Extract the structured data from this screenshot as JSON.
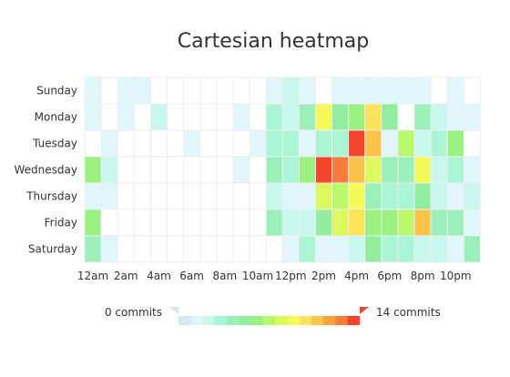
{
  "chart_data": {
    "type": "heatmap",
    "title": "Cartesian heatmap",
    "x_categories": [
      "12am",
      "1am",
      "2am",
      "3am",
      "4am",
      "5am",
      "6am",
      "7am",
      "8am",
      "9am",
      "10am",
      "11am",
      "12pm",
      "1pm",
      "2pm",
      "3pm",
      "4pm",
      "5pm",
      "6pm",
      "7pm",
      "8pm",
      "9pm",
      "10pm",
      "11pm"
    ],
    "x_tick_labels": [
      "12am",
      "2am",
      "4am",
      "6am",
      "8am",
      "10am",
      "12pm",
      "2pm",
      "4pm",
      "6pm",
      "8pm",
      "10pm"
    ],
    "y_categories": [
      "Sunday",
      "Monday",
      "Tuesday",
      "Wednesday",
      "Thursday",
      "Friday",
      "Saturday"
    ],
    "value_range": [
      0,
      14
    ],
    "grid": true,
    "legend_position": "bottom",
    "legend": {
      "min_label": "0 commits",
      "max_label": "14 commits"
    },
    "palette": [
      "#d4e9f0",
      "#e0f6fb",
      "#c8f7ee",
      "#a9f5d6",
      "#9af0b8",
      "#93ed9f",
      "#9bf281",
      "#b9f76b",
      "#dcf85c",
      "#f6fa58",
      "#fce35a",
      "#fcc34b",
      "#fca044",
      "#fc7a3b",
      "#f4442e"
    ],
    "values": [
      [
        1,
        0,
        1,
        1,
        0,
        0,
        0,
        0,
        0,
        0,
        0,
        1,
        2,
        1,
        0,
        1,
        1,
        1,
        1,
        1,
        1,
        0,
        1,
        0
      ],
      [
        1,
        0,
        1,
        0,
        2,
        0,
        0,
        0,
        0,
        1,
        0,
        3,
        2,
        4,
        9,
        5,
        6,
        10,
        5,
        0,
        4,
        2,
        1,
        1
      ],
      [
        0,
        1,
        0,
        0,
        0,
        0,
        1,
        0,
        0,
        0,
        1,
        3,
        3,
        1,
        3,
        3,
        14,
        11,
        1,
        7,
        2,
        3,
        6,
        0
      ],
      [
        6,
        2,
        0,
        0,
        0,
        0,
        0,
        0,
        0,
        1,
        0,
        4,
        3,
        6,
        14,
        13,
        11,
        8,
        4,
        4,
        9,
        2,
        3,
        1
      ],
      [
        1,
        1,
        0,
        0,
        0,
        0,
        0,
        0,
        0,
        0,
        0,
        2,
        1,
        1,
        8,
        7,
        9,
        4,
        3,
        3,
        5,
        2,
        1,
        2
      ],
      [
        6,
        0,
        0,
        0,
        0,
        0,
        0,
        0,
        0,
        0,
        0,
        4,
        2,
        2,
        5,
        8,
        10,
        6,
        6,
        7,
        11,
        4,
        4,
        1
      ],
      [
        4,
        1,
        0,
        0,
        0,
        0,
        0,
        0,
        0,
        0,
        0,
        0,
        1,
        3,
        1,
        1,
        2,
        5,
        3,
        3,
        2,
        2,
        1,
        4
      ]
    ]
  }
}
